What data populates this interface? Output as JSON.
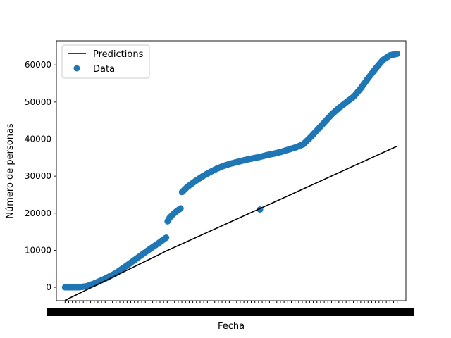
{
  "chart_data": {
    "type": "scatter",
    "title": "",
    "xlabel": "Fecha",
    "ylabel": "Número de personas",
    "ylim": [
      -3600,
      66500
    ],
    "xlim": [
      -12,
      472
    ],
    "yticks": [
      0,
      10000,
      20000,
      30000,
      40000,
      50000,
      60000
    ],
    "grid": false,
    "legend": {
      "placement": "upper-left",
      "entries": [
        "Predictions",
        "Data"
      ]
    },
    "colors": {
      "predictions": "#000000",
      "data": "#1f77b4"
    },
    "predictions": {
      "name": "Predictions",
      "x": [
        0,
        130,
        140,
        300,
        460
      ],
      "y": [
        -3500,
        8800,
        9800,
        23900,
        38100
      ]
    },
    "data_series": {
      "name": "Data",
      "segments": [
        {
          "x": [
            0,
            10,
            20,
            30,
            40,
            55,
            70,
            85,
            100,
            115,
            130,
            140
          ],
          "y": [
            0,
            0,
            20,
            300,
            1000,
            2300,
            3800,
            5800,
            7900,
            10000,
            12000,
            13400
          ]
        },
        {
          "x": [
            142,
            145,
            150,
            155,
            160
          ],
          "y": [
            17800,
            18800,
            19800,
            20600,
            21300
          ]
        },
        {
          "x": [
            162,
            170,
            180,
            190,
            200,
            210,
            220,
            230,
            240,
            250,
            260,
            270,
            280,
            290,
            300,
            310,
            320,
            330,
            340,
            350,
            360,
            370,
            380,
            390,
            400,
            410,
            420,
            430,
            440,
            450,
            455,
            460
          ],
          "y": [
            25700,
            27200,
            28600,
            29900,
            31000,
            32000,
            32800,
            33400,
            33900,
            34400,
            34800,
            35200,
            35700,
            36100,
            36600,
            37200,
            37800,
            38600,
            40500,
            42600,
            44700,
            46800,
            48500,
            50000,
            51500,
            53800,
            56500,
            59000,
            61300,
            62600,
            62800,
            63000
          ]
        }
      ],
      "outlier": {
        "x": 270,
        "y": 21000
      }
    },
    "x_tick_count": 92
  }
}
